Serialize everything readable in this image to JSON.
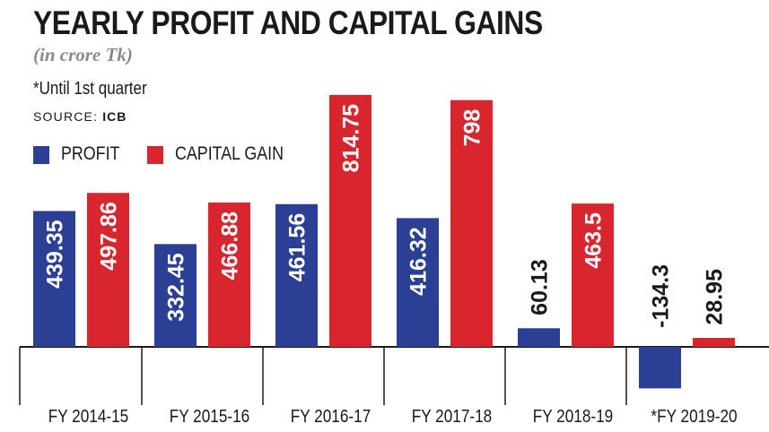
{
  "header": {
    "title": "YEARLY PROFIT AND CAPITAL GAINS",
    "subtitle": "(in crore Tk)",
    "note": "*Until 1st quarter",
    "source_prefix": "SOURCE:",
    "source_name": "ICB"
  },
  "colors": {
    "profit": "#2b3f94",
    "capital_gain": "#d9262e",
    "axis": "#1a1a1a",
    "label_on_bar": "#ffffff",
    "label_outside": "#1a1a1a"
  },
  "chart_data": {
    "type": "bar",
    "title": "YEARLY PROFIT AND CAPITAL GAINS",
    "subtitle": "(in crore Tk)",
    "categories": [
      "FY 2014-15",
      "FY 2015-16",
      "FY 2016-17",
      "FY 2017-18",
      "FY 2018-19",
      "*FY 2019-20"
    ],
    "series": [
      {
        "name": "PROFIT",
        "values": [
          439.35,
          332.45,
          461.56,
          416.32,
          60.13,
          -134.3
        ]
      },
      {
        "name": "CAPITAL GAIN",
        "values": [
          497.86,
          466.88,
          814.75,
          798,
          463.5,
          28.95
        ]
      }
    ],
    "value_labels": [
      [
        "439.35",
        "332.45",
        "461.56",
        "416.32",
        "60.13",
        "-134.3"
      ],
      [
        "497.86",
        "466.88",
        "814.75",
        "798",
        "463.5",
        "28.95"
      ]
    ],
    "xlabel": "",
    "ylabel": "",
    "ylim": [
      -140,
      850
    ],
    "grid": false,
    "legend": "top-left"
  }
}
